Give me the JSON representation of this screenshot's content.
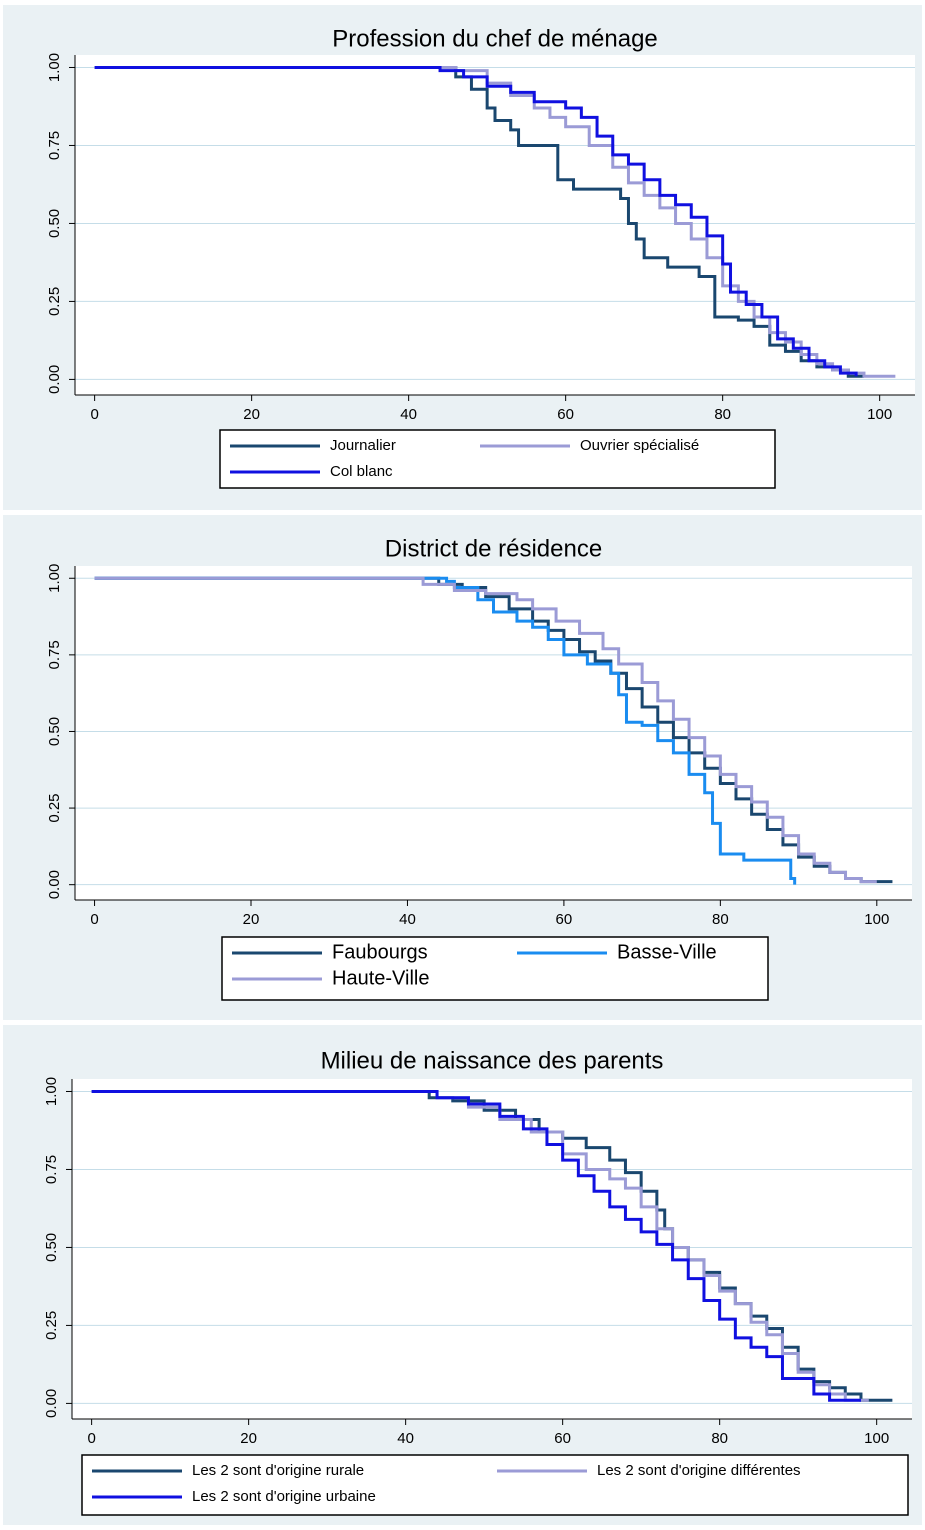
{
  "chart_data": [
    {
      "type": "line",
      "drawstyle": "steps-post",
      "title": "Profession du chef de ménage",
      "grid": true,
      "legend": "bottom",
      "xlim": [
        -2.5,
        104.5
      ],
      "ylim": [
        -0.05,
        1.04
      ],
      "xticks": [
        0,
        20,
        40,
        60,
        80,
        100
      ],
      "yticks": [
        {
          "value": 0,
          "label": "0.00"
        },
        {
          "value": 0.25,
          "label": "0.25"
        },
        {
          "value": 0.5,
          "label": "0.50"
        },
        {
          "value": 0.75,
          "label": "0.75"
        },
        {
          "value": 1,
          "label": "1.00"
        }
      ],
      "series": [
        {
          "name": "Journalier",
          "color": "#1a476f",
          "x": [
            0,
            45,
            46,
            48,
            50,
            51,
            53,
            54,
            59,
            61,
            64,
            67,
            68,
            69,
            70,
            73,
            77,
            79,
            82,
            84,
            86,
            88,
            90,
            92,
            94,
            96,
            98
          ],
          "values": [
            1,
            1,
            0.97,
            0.93,
            0.87,
            0.83,
            0.8,
            0.75,
            0.64,
            0.61,
            0.61,
            0.58,
            0.5,
            0.45,
            0.39,
            0.36,
            0.33,
            0.2,
            0.19,
            0.17,
            0.11,
            0.09,
            0.06,
            0.04,
            0.03,
            0.01,
            0.01
          ]
        },
        {
          "name": "Ouvrier spécialisé",
          "color": "#9b9bd6",
          "x": [
            0,
            42,
            46,
            50,
            53,
            56,
            58,
            60,
            63,
            66,
            68,
            70,
            72,
            74,
            76,
            78,
            80,
            82,
            84,
            86,
            88,
            90,
            92,
            94,
            96,
            98,
            102
          ],
          "values": [
            1,
            1,
            0.99,
            0.95,
            0.91,
            0.87,
            0.84,
            0.81,
            0.75,
            0.68,
            0.63,
            0.59,
            0.55,
            0.5,
            0.45,
            0.39,
            0.3,
            0.25,
            0.2,
            0.15,
            0.12,
            0.08,
            0.05,
            0.03,
            0.02,
            0.01,
            0.01
          ]
        },
        {
          "name": "Col blanc",
          "color": "#1010e0",
          "x": [
            0,
            40,
            44,
            47,
            50,
            53,
            56,
            60,
            62,
            64,
            66,
            68,
            70,
            72,
            74,
            76,
            78,
            80,
            81,
            83,
            85,
            87,
            89,
            91,
            93,
            95,
            97
          ],
          "values": [
            1,
            1,
            0.99,
            0.97,
            0.94,
            0.92,
            0.89,
            0.87,
            0.84,
            0.78,
            0.72,
            0.69,
            0.64,
            0.59,
            0.56,
            0.52,
            0.46,
            0.37,
            0.28,
            0.24,
            0.2,
            0.13,
            0.1,
            0.06,
            0.04,
            0.02,
            0.01
          ]
        }
      ]
    },
    {
      "type": "line",
      "drawstyle": "steps-post",
      "title": "District de résidence",
      "grid": true,
      "legend": "bottom",
      "xlim": [
        -2.5,
        104.5
      ],
      "ylim": [
        -0.05,
        1.04
      ],
      "xticks": [
        0,
        20,
        40,
        60,
        80,
        100
      ],
      "yticks": [
        {
          "value": 0,
          "label": "0.00"
        },
        {
          "value": 0.25,
          "label": "0.25"
        },
        {
          "value": 0.5,
          "label": "0.50"
        },
        {
          "value": 0.75,
          "label": "0.75"
        },
        {
          "value": 1,
          "label": "1.00"
        }
      ],
      "series": [
        {
          "name": "Faubourgs",
          "color": "#1a476f",
          "x": [
            0,
            41,
            44,
            47,
            50,
            53,
            56,
            58,
            60,
            62,
            64,
            66,
            68,
            70,
            72,
            74,
            76,
            78,
            80,
            82,
            84,
            86,
            88,
            90,
            92,
            94,
            96,
            98,
            102
          ],
          "values": [
            1,
            1,
            0.98,
            0.97,
            0.94,
            0.9,
            0.86,
            0.83,
            0.8,
            0.76,
            0.73,
            0.69,
            0.64,
            0.58,
            0.53,
            0.48,
            0.43,
            0.38,
            0.33,
            0.28,
            0.23,
            0.18,
            0.13,
            0.09,
            0.06,
            0.04,
            0.02,
            0.01,
            0.01
          ]
        },
        {
          "name": "Basse-Ville",
          "color": "#1a8cf0",
          "x": [
            0,
            42,
            45,
            46,
            49,
            51,
            54,
            56,
            58,
            60,
            63,
            66,
            67,
            68,
            70,
            72,
            74,
            76,
            78,
            79,
            80,
            83,
            86,
            89,
            89.5
          ],
          "values": [
            1,
            1,
            0.99,
            0.97,
            0.93,
            0.89,
            0.86,
            0.84,
            0.8,
            0.75,
            0.72,
            0.69,
            0.62,
            0.53,
            0.52,
            0.47,
            0.43,
            0.36,
            0.3,
            0.2,
            0.1,
            0.08,
            0.08,
            0.02,
            0
          ]
        },
        {
          "name": "Haute-Ville",
          "color": "#9b9bd6",
          "x": [
            0,
            40,
            42,
            46,
            50,
            54,
            56,
            59,
            62,
            65,
            67,
            70,
            72,
            74,
            76,
            78,
            80,
            82,
            84,
            86,
            88,
            90,
            92,
            94,
            96,
            98,
            100
          ],
          "values": [
            1,
            1,
            0.98,
            0.96,
            0.95,
            0.93,
            0.9,
            0.86,
            0.82,
            0.77,
            0.72,
            0.66,
            0.6,
            0.54,
            0.48,
            0.42,
            0.36,
            0.32,
            0.27,
            0.22,
            0.16,
            0.1,
            0.07,
            0.04,
            0.02,
            0.01,
            0.01
          ]
        }
      ]
    },
    {
      "type": "line",
      "drawstyle": "steps-post",
      "title": "Milieu de naissance des parents",
      "grid": true,
      "legend": "bottom",
      "xlim": [
        -2.5,
        104.5
      ],
      "ylim": [
        -0.05,
        1.04
      ],
      "xticks": [
        0,
        20,
        40,
        60,
        80,
        100
      ],
      "yticks": [
        {
          "value": 0,
          "label": "0.00"
        },
        {
          "value": 0.25,
          "label": "0.25"
        },
        {
          "value": 0.5,
          "label": "0.50"
        },
        {
          "value": 0.75,
          "label": "0.75"
        },
        {
          "value": 1,
          "label": "1.00"
        }
      ],
      "series": [
        {
          "name": "Les 2 sont d'origine rurale",
          "color": "#1a476f",
          "x": [
            0,
            41,
            43,
            46,
            50,
            54,
            57,
            60,
            63,
            66,
            68,
            70,
            72,
            73,
            74,
            76,
            78,
            80,
            82,
            84,
            86,
            88,
            90,
            92,
            94,
            96,
            98,
            102
          ],
          "values": [
            1,
            1,
            0.98,
            0.97,
            0.94,
            0.91,
            0.87,
            0.85,
            0.82,
            0.78,
            0.74,
            0.68,
            0.62,
            0.56,
            0.5,
            0.46,
            0.42,
            0.37,
            0.32,
            0.28,
            0.24,
            0.18,
            0.11,
            0.07,
            0.05,
            0.03,
            0.01,
            0.01
          ]
        },
        {
          "name": "Les 2 sont d'origine différentes",
          "color": "#9b9bd6",
          "x": [
            0,
            41,
            44,
            48,
            52,
            56,
            60,
            63,
            66,
            68,
            70,
            72,
            74,
            76,
            78,
            80,
            82,
            84,
            86,
            88,
            90,
            92,
            94,
            96,
            99
          ],
          "values": [
            1,
            1,
            0.98,
            0.95,
            0.91,
            0.87,
            0.8,
            0.75,
            0.72,
            0.69,
            0.63,
            0.56,
            0.5,
            0.46,
            0.41,
            0.36,
            0.32,
            0.26,
            0.22,
            0.16,
            0.1,
            0.06,
            0.03,
            0.01,
            0.01
          ]
        },
        {
          "name": "Les 2 sont d'origine urbaine",
          "color": "#1010e0",
          "x": [
            0,
            41,
            44,
            48,
            52,
            55,
            58,
            60,
            62,
            64,
            66,
            68,
            70,
            72,
            74,
            76,
            78,
            80,
            82,
            84,
            86,
            88,
            90,
            92,
            94,
            98
          ],
          "values": [
            1,
            1,
            0.98,
            0.96,
            0.92,
            0.88,
            0.83,
            0.78,
            0.73,
            0.68,
            0.63,
            0.59,
            0.55,
            0.51,
            0.46,
            0.4,
            0.33,
            0.27,
            0.21,
            0.18,
            0.15,
            0.08,
            0.08,
            0.03,
            0.01,
            0.01
          ]
        }
      ]
    }
  ]
}
